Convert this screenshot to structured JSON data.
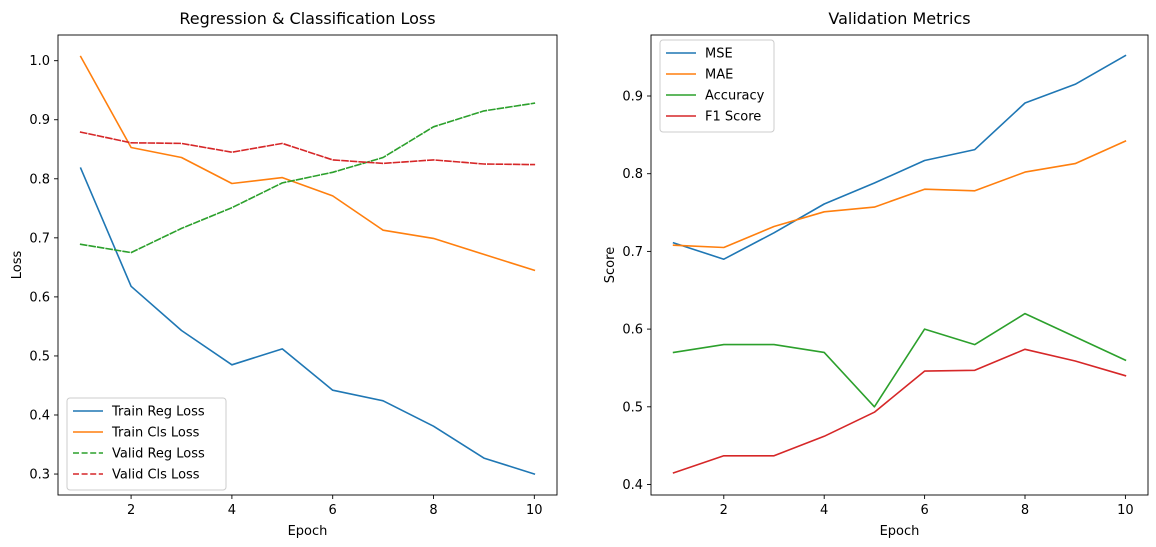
{
  "chart_data": [
    {
      "type": "line",
      "title": "Regression & Classification Loss",
      "xlabel": "Epoch",
      "ylabel": "Loss",
      "x": [
        1,
        2,
        3,
        4,
        5,
        6,
        7,
        8,
        9,
        10
      ],
      "xlim": [
        0.55,
        10.45
      ],
      "ylim": [
        0.2645,
        1.0435
      ],
      "xticks": [
        2,
        4,
        6,
        8,
        10
      ],
      "yticks": [
        0.3,
        0.4,
        0.5,
        0.6,
        0.7,
        0.8,
        0.9,
        1.0
      ],
      "ytick_labels": [
        "0.3",
        "0.4",
        "0.5",
        "0.6",
        "0.7",
        "0.8",
        "0.9",
        "1.0"
      ],
      "legend": "lower-left",
      "grid": false,
      "series": [
        {
          "name": "Train Reg Loss",
          "color": "#1f77b4",
          "dash": "solid",
          "values": [
            0.818,
            0.618,
            0.543,
            0.485,
            0.512,
            0.442,
            0.424,
            0.381,
            0.327,
            0.3
          ]
        },
        {
          "name": "Train Cls Loss",
          "color": "#ff7f0e",
          "dash": "solid",
          "values": [
            1.007,
            0.853,
            0.836,
            0.792,
            0.802,
            0.771,
            0.713,
            0.699,
            0.672,
            0.645
          ]
        },
        {
          "name": "Valid Reg Loss",
          "color": "#2ca02c",
          "dash": "dashed",
          "values": [
            0.689,
            0.675,
            0.716,
            0.751,
            0.793,
            0.811,
            0.836,
            0.888,
            0.915,
            0.928
          ]
        },
        {
          "name": "Valid Cls Loss",
          "color": "#d62728",
          "dash": "dashed",
          "values": [
            0.879,
            0.861,
            0.86,
            0.845,
            0.86,
            0.832,
            0.826,
            0.832,
            0.825,
            0.824
          ]
        }
      ]
    },
    {
      "type": "line",
      "title": "Validation Metrics",
      "xlabel": "Epoch",
      "ylabel": "Score",
      "x": [
        1,
        2,
        3,
        4,
        5,
        6,
        7,
        8,
        9,
        10
      ],
      "xlim": [
        0.55,
        10.45
      ],
      "ylim": [
        0.3865,
        0.9785
      ],
      "xticks": [
        2,
        4,
        6,
        8,
        10
      ],
      "yticks": [
        0.4,
        0.5,
        0.6,
        0.7,
        0.8,
        0.9
      ],
      "ytick_labels": [
        "0.4",
        "0.5",
        "0.6",
        "0.7",
        "0.8",
        "0.9"
      ],
      "legend": "upper-left",
      "grid": false,
      "series": [
        {
          "name": "MSE",
          "color": "#1f77b4",
          "dash": "solid",
          "values": [
            0.711,
            0.69,
            0.724,
            0.761,
            0.788,
            0.817,
            0.831,
            0.891,
            0.915,
            0.952
          ]
        },
        {
          "name": "MAE",
          "color": "#ff7f0e",
          "dash": "solid",
          "values": [
            0.708,
            0.705,
            0.732,
            0.751,
            0.757,
            0.78,
            0.778,
            0.802,
            0.813,
            0.842
          ]
        },
        {
          "name": "Accuracy",
          "color": "#2ca02c",
          "dash": "solid",
          "values": [
            0.57,
            0.58,
            0.58,
            0.57,
            0.5,
            0.6,
            0.58,
            0.62,
            0.59,
            0.56
          ]
        },
        {
          "name": "F1 Score",
          "color": "#d62728",
          "dash": "solid",
          "values": [
            0.415,
            0.437,
            0.437,
            0.462,
            0.493,
            0.546,
            0.547,
            0.574,
            0.559,
            0.54
          ]
        }
      ]
    }
  ]
}
